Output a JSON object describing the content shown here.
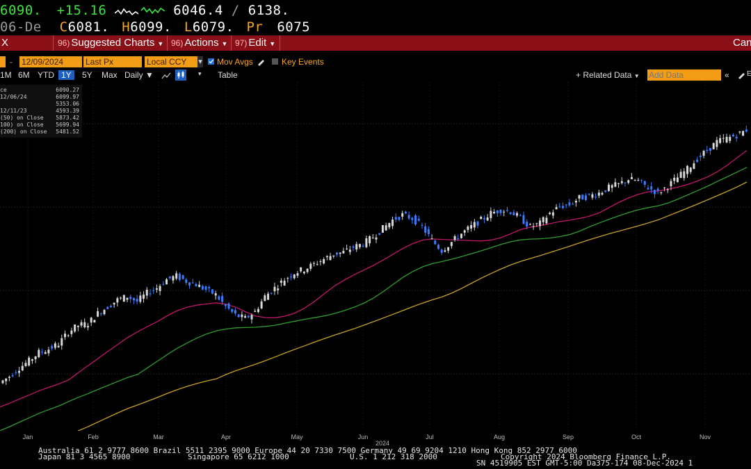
{
  "quote": {
    "last": "6090.",
    "change": "+15.16",
    "range_low": "6046.4",
    "range_sep": "/",
    "range_high": "6138."
  },
  "ohlc": {
    "date": "06-De",
    "open_prefix": "C",
    "open": "6081.",
    "high_prefix": "H",
    "high": "6099.",
    "low_prefix": "L",
    "low": "6079.",
    "prev_prefix": "Pr",
    "prev": "6075"
  },
  "menubar": {
    "left_label": "X",
    "items": [
      {
        "num": "96)",
        "label": "Suggested Charts"
      },
      {
        "num": "96)",
        "label": "Actions"
      },
      {
        "num": "97)",
        "label": "Edit"
      }
    ],
    "right_label": "Can"
  },
  "controls": {
    "start_date": "12/09/2024",
    "price_field": "Last Px",
    "currency": "Local CCY",
    "mov_avgs_label": "Mov Avgs",
    "key_events_label": "Key Events",
    "related_data_label": "+ Related Data",
    "add_data_placeholder": "Add Data"
  },
  "periods": {
    "items": [
      "1M",
      "6M",
      "YTD",
      "1Y",
      "5Y",
      "Max"
    ],
    "active": "1Y",
    "frequency": "Daily",
    "table_label": "Table"
  },
  "legend": [
    {
      "key": "ce",
      "value": "6090.27"
    },
    {
      "key": "12/06/24",
      "value": "6099.97"
    },
    {
      "key": "",
      "value": "5353.06"
    },
    {
      "key": "12/11/23",
      "value": "4593.39"
    },
    {
      "key": "(50)  on Close",
      "value": "5873.42"
    },
    {
      "key": "100)  on Close",
      "value": "5699.94"
    },
    {
      "key": "(200) on Close",
      "value": "5481.52"
    }
  ],
  "chart_data": {
    "type": "line",
    "series": [
      {
        "values": [
          4600,
          4640,
          4690,
          4730,
          4780,
          4800,
          4830,
          4900,
          4940,
          4950,
          5010,
          5050,
          5090,
          5110,
          5080,
          5130,
          5160,
          5210,
          5230,
          5200,
          5180,
          5150,
          5120,
          5050,
          5000,
          4980,
          5020,
          5110,
          5160,
          5210,
          5250,
          5270,
          5300,
          5330,
          5360,
          5370,
          5400,
          5420,
          5460,
          5510,
          5560,
          5590,
          5570,
          5520,
          5440,
          5380,
          5430,
          5480,
          5520,
          5560,
          5600,
          5620,
          5610,
          5570,
          5520,
          5540,
          5600,
          5640,
          5650,
          5690,
          5700,
          5720,
          5750,
          5770,
          5800,
          5790,
          5750,
          5720,
          5760,
          5810,
          5860,
          5920,
          5970,
          6020,
          6040,
          6060,
          6090
        ]
      }
    ],
    "moving_averages": [
      {
        "name": "50",
        "color": "#c2186b"
      },
      {
        "name": "100",
        "color": "#2f9e2f"
      },
      {
        "name": "200",
        "color": "#c9a227"
      }
    ],
    "x_labels": [
      "Jan",
      "Feb",
      "Mar",
      "Apr",
      "May",
      "Jun",
      "Jul",
      "Aug",
      "Sep",
      "Oct",
      "Nov"
    ],
    "x_year": "2024",
    "grid": true
  },
  "footer": {
    "line1": "Australia 61 2 9777 8600 Brazil 5511 2395 9000 Europe 44 20 7330 7500 Germany 49 69 9204 1210 Hong Kong 852 2977 6000",
    "line2a": "Japan 81 3 4565 8900",
    "line2b": "Singapore 65 6212 1000",
    "line2c": "U.S. 1 212 318 2000",
    "line2d": "Copyright 2024 Bloomberg Finance L.P.",
    "line3": "SN 4519905 EST  GMT-5:00 Da375-174 08-Dec-2024 1"
  },
  "colors": {
    "accent_green": "#3fe23f",
    "menu_red": "#8b0f16",
    "field_orange": "#f29d15",
    "active_blue": "#1f5fbf"
  }
}
